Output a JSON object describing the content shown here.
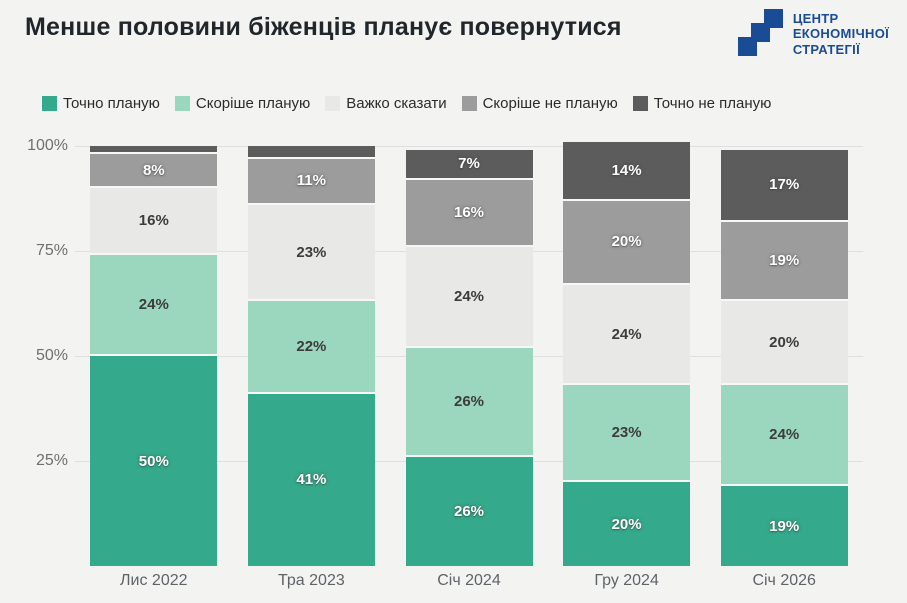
{
  "header": {
    "title": "Менше половини біженців планує повернутися",
    "logo_lines": [
      "ЦЕНТР",
      "ЕКОНОМІЧНОЇ",
      "СТРАТЕГІЇ"
    ]
  },
  "colors": {
    "background": "#F3F4F2",
    "logo_blue": "#1A4C96",
    "grid_line": "#DEDFDE",
    "axis_text": "#6F6F6F",
    "title_text": "#21262B"
  },
  "chart_data": {
    "type": "stacked_bar",
    "title": "Менше половини біженців планує повернутися",
    "stacking": "percent",
    "categories": [
      "Лис 2022",
      "Тра 2023",
      "Січ 2024",
      "Гру 2024",
      "Січ 2026"
    ],
    "series": [
      {
        "name": "Точно планую",
        "color": "#35A98B",
        "label_color": "white",
        "values": [
          50,
          41,
          26,
          20,
          19
        ]
      },
      {
        "name": "Скоріше планую",
        "color": "#9BD6BF",
        "label_color": "dark",
        "values": [
          24,
          22,
          26,
          23,
          24
        ]
      },
      {
        "name": "Важко сказати",
        "color": "#E8E8E6",
        "label_color": "dark",
        "values": [
          16,
          23,
          24,
          24,
          20
        ]
      },
      {
        "name": "Скоріше не планую",
        "color": "#9C9C9C",
        "label_color": "white",
        "values": [
          8,
          11,
          16,
          20,
          19
        ]
      },
      {
        "name": "Точно не планую",
        "color": "#5C5C5C",
        "label_color": "white",
        "values": [
          2,
          3,
          7,
          14,
          17
        ]
      }
    ],
    "y_ticks": [
      "25%",
      "50%",
      "75%",
      "100%"
    ],
    "ylim": [
      0,
      100
    ],
    "grid": true,
    "legend_position": "top",
    "min_label_value": 5,
    "label_suffix": "%"
  }
}
